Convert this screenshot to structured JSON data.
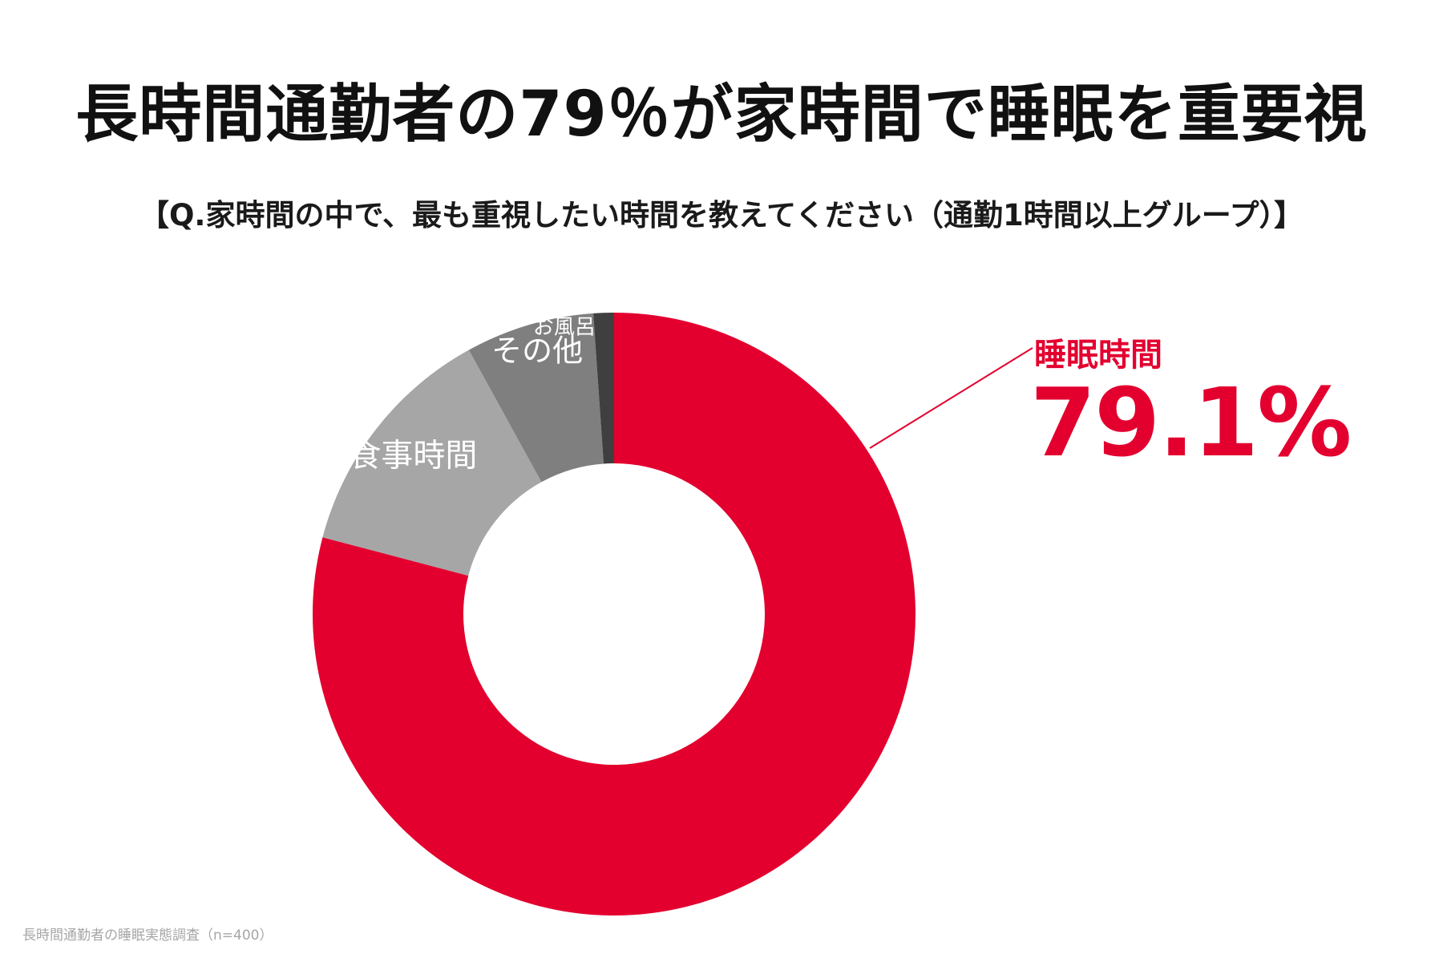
{
  "title": "長時間通勤者の79％が家時間で睡眠を重要視",
  "subtitle": "【Q.家時間の中で、最も重視したい時間を教えてください（通勤1時間以上グループ）】",
  "source": "長時間通勤者の睡眠実態調査（n=400）",
  "callout": {
    "label": "睡眠時間",
    "value": "79.1%"
  },
  "chart_data": {
    "type": "pie",
    "donut": true,
    "slices": [
      {
        "label": "睡眠時間",
        "value": 79.1,
        "color": "#e3002f",
        "label_color": "#e3002f"
      },
      {
        "label": "食事時間",
        "value": 12.9,
        "color": "#a6a6a6",
        "label_color": "#ffffff"
      },
      {
        "label": "その他",
        "value": 6.9,
        "color": "#7f7f7f",
        "label_color": "#ffffff"
      },
      {
        "label": "お風呂",
        "value": 1.1,
        "color": "#3f3f3f",
        "label_color": "#ffffff"
      }
    ]
  }
}
